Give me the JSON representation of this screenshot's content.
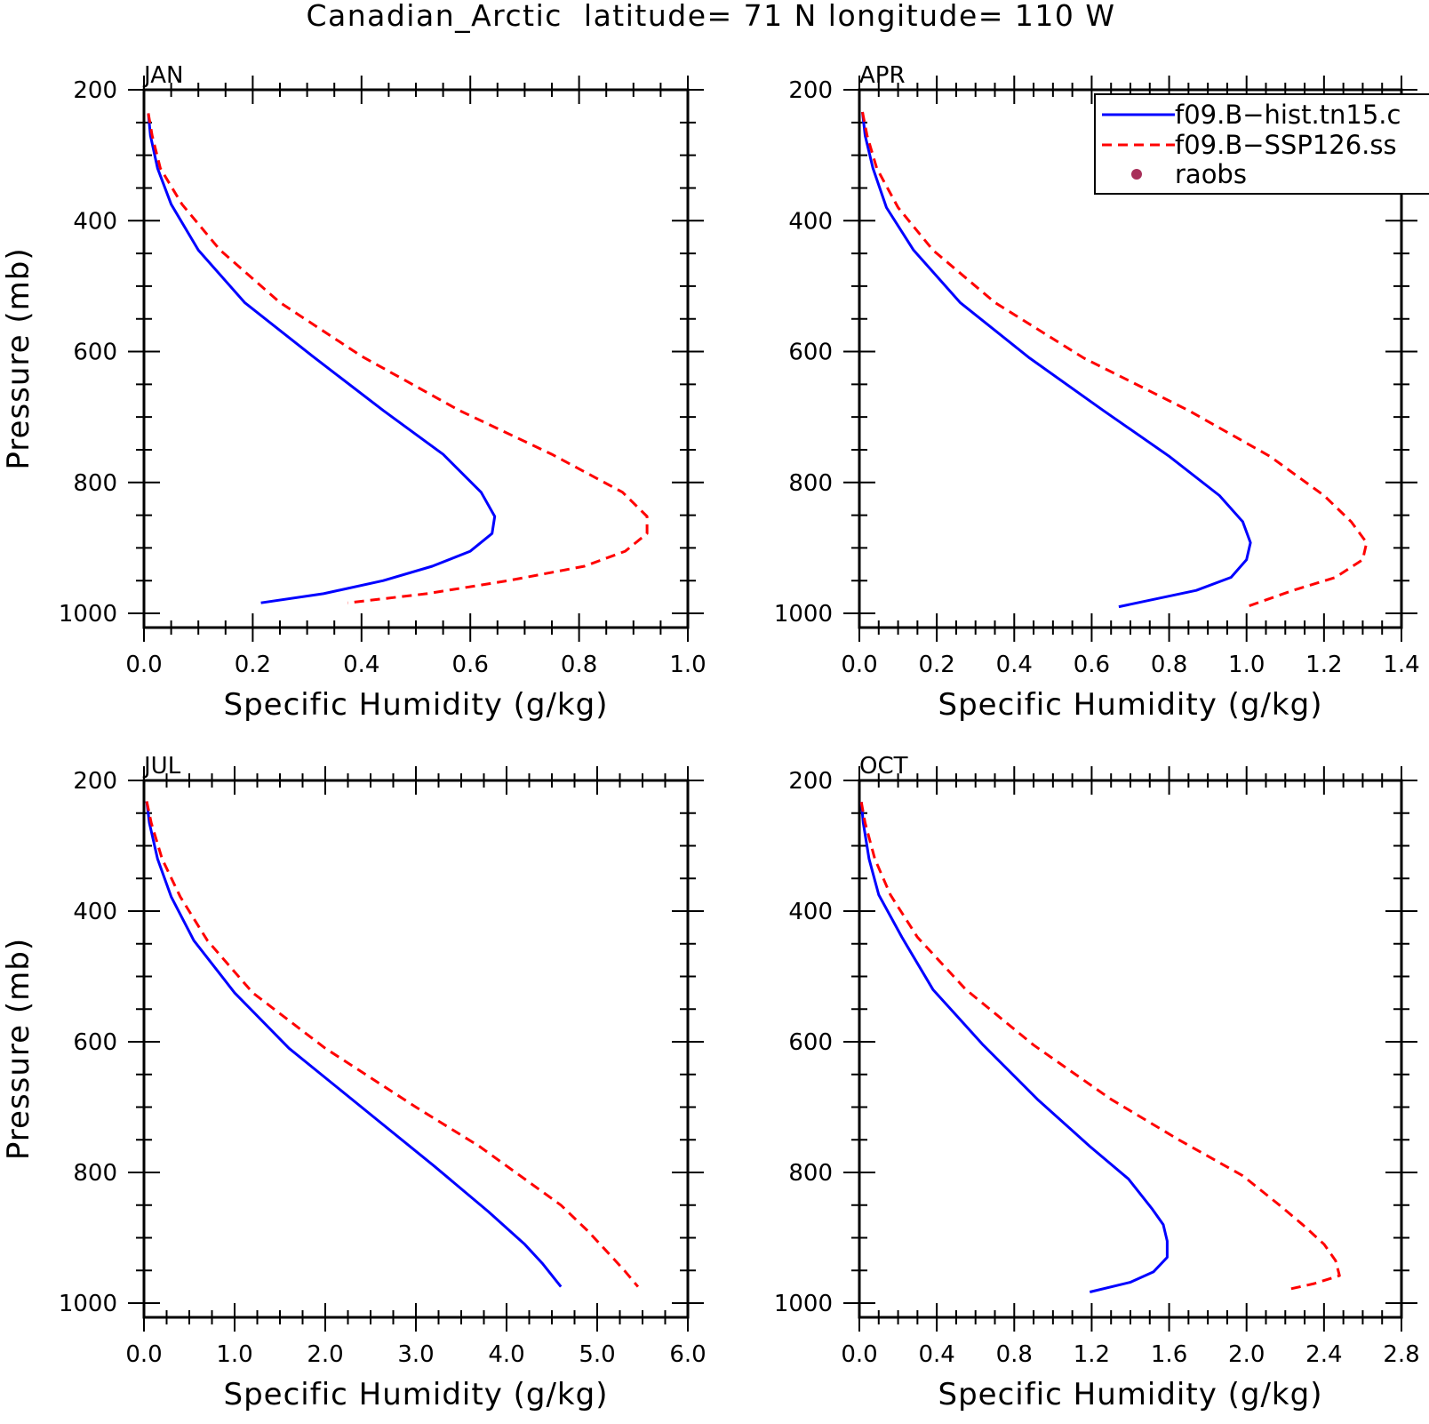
{
  "title": "Canadian_Arctic  latitude= 71 N longitude= 110 W",
  "legend": {
    "entries": [
      {
        "label": "f09.B−hist.tn15.c",
        "color": "#0000ff",
        "style": "solid"
      },
      {
        "label": "f09.B−SSP126.ss",
        "color": "#ff0000",
        "style": "dashed"
      },
      {
        "label": "raobs",
        "color": "#a8305a",
        "style": "marker"
      }
    ]
  },
  "chart_data": [
    {
      "type": "line",
      "panel": "JAN",
      "xlabel": "Specific Humidity (g/kg)",
      "ylabel": "Pressure (mb)",
      "xlim": [
        0,
        1.0
      ],
      "ylim": [
        1000,
        200
      ],
      "xticks": [
        0,
        0.2,
        0.4,
        0.6,
        0.8,
        1.0
      ],
      "xticklabels": [
        "0.0",
        "0.2",
        "0.4",
        "0.6",
        "0.8",
        "1.0"
      ],
      "yticks": [
        200,
        400,
        600,
        800,
        1000
      ],
      "yticklabels": [
        "200",
        "400",
        "600",
        "800",
        "1000"
      ],
      "series": [
        {
          "name": "f09.B−hist.tn15.c",
          "y": [
            236,
            270,
            320,
            375,
            445,
            525,
            607,
            690,
            757,
            815,
            852,
            878,
            905,
            928,
            950,
            970,
            984
          ],
          "x": [
            0.008,
            0.012,
            0.025,
            0.05,
            0.1,
            0.185,
            0.31,
            0.44,
            0.55,
            0.62,
            0.645,
            0.64,
            0.6,
            0.53,
            0.44,
            0.33,
            0.215
          ]
        },
        {
          "name": "f09.B−SSP126.ss",
          "y": [
            236,
            270,
            320,
            375,
            445,
            525,
            607,
            690,
            757,
            815,
            852,
            878,
            905,
            928,
            950,
            970,
            984
          ],
          "x": [
            0.008,
            0.015,
            0.03,
            0.07,
            0.14,
            0.25,
            0.4,
            0.58,
            0.75,
            0.88,
            0.925,
            0.925,
            0.885,
            0.81,
            0.67,
            0.52,
            0.375
          ]
        }
      ]
    },
    {
      "type": "line",
      "panel": "APR",
      "xlabel": "Specific Humidity (g/kg)",
      "ylabel": "",
      "xlim": [
        0,
        1.4
      ],
      "ylim": [
        1000,
        200
      ],
      "xticks": [
        0,
        0.2,
        0.4,
        0.6,
        0.8,
        1.0,
        1.2,
        1.4
      ],
      "xticklabels": [
        "0.0",
        "0.2",
        "0.4",
        "0.6",
        "0.8",
        "1.0",
        "1.2",
        "1.4"
      ],
      "yticks": [
        200,
        400,
        600,
        800,
        1000
      ],
      "yticklabels": [
        "200",
        "400",
        "600",
        "800",
        "1000"
      ],
      "series": [
        {
          "name": "f09.B−hist.tn15.c",
          "y": [
            234,
            270,
            320,
            380,
            445,
            525,
            610,
            690,
            760,
            820,
            860,
            892,
            918,
            945,
            965,
            990
          ],
          "x": [
            0.008,
            0.015,
            0.035,
            0.07,
            0.14,
            0.26,
            0.44,
            0.63,
            0.8,
            0.93,
            0.99,
            1.01,
            1.0,
            0.96,
            0.87,
            0.67
          ]
        },
        {
          "name": "f09.B−SSP126.ss",
          "y": [
            234,
            270,
            320,
            380,
            445,
            525,
            610,
            690,
            760,
            820,
            860,
            892,
            918,
            945,
            965,
            990
          ],
          "x": [
            0.008,
            0.02,
            0.045,
            0.1,
            0.19,
            0.35,
            0.58,
            0.85,
            1.06,
            1.2,
            1.27,
            1.31,
            1.3,
            1.23,
            1.12,
            1.0
          ]
        }
      ]
    },
    {
      "type": "line",
      "panel": "JUL",
      "xlabel": "Specific Humidity (g/kg)",
      "ylabel": "Pressure (mb)",
      "xlim": [
        0,
        6.0
      ],
      "ylim": [
        1000,
        200
      ],
      "xticks": [
        0,
        1,
        2,
        3,
        4,
        5,
        6
      ],
      "xticklabels": [
        "0.0",
        "1.0",
        "2.0",
        "3.0",
        "4.0",
        "5.0",
        "6.0"
      ],
      "yticks": [
        200,
        400,
        600,
        800,
        1000
      ],
      "yticklabels": [
        "200",
        "400",
        "600",
        "800",
        "1000"
      ],
      "series": [
        {
          "name": "f09.B−hist.tn15.c",
          "y": [
            232,
            265,
            320,
            378,
            445,
            525,
            610,
            700,
            790,
            860,
            910,
            940,
            975
          ],
          "x": [
            0.03,
            0.06,
            0.15,
            0.3,
            0.55,
            1.0,
            1.6,
            2.4,
            3.2,
            3.8,
            4.2,
            4.4,
            4.6
          ]
        },
        {
          "name": "f09.B−SSP126.ss",
          "y": [
            232,
            265,
            320,
            378,
            445,
            525,
            610,
            700,
            760,
            850,
            890,
            920,
            950,
            975
          ],
          "x": [
            0.03,
            0.08,
            0.2,
            0.4,
            0.7,
            1.2,
            2.0,
            3.0,
            3.7,
            4.6,
            4.9,
            5.1,
            5.3,
            5.45
          ]
        }
      ]
    },
    {
      "type": "line",
      "panel": "OCT",
      "xlabel": "Specific Humidity (g/kg)",
      "ylabel": "",
      "xlim": [
        0,
        2.8
      ],
      "ylim": [
        1000,
        200
      ],
      "xticks": [
        0,
        0.4,
        0.8,
        1.2,
        1.6,
        2.0,
        2.4,
        2.8
      ],
      "xticklabels": [
        "0.0",
        "0.4",
        "0.8",
        "1.2",
        "1.6",
        "2.0",
        "2.4",
        "2.8"
      ],
      "yticks": [
        200,
        400,
        600,
        800,
        1000
      ],
      "yticklabels": [
        "200",
        "400",
        "600",
        "800",
        "1000"
      ],
      "series": [
        {
          "name": "f09.B−hist.tn15.c",
          "y": [
            233,
            265,
            320,
            375,
            440,
            520,
            605,
            688,
            760,
            810,
            855,
            880,
            905,
            930,
            952,
            968,
            983
          ],
          "x": [
            0.01,
            0.02,
            0.05,
            0.1,
            0.22,
            0.38,
            0.64,
            0.92,
            1.19,
            1.39,
            1.51,
            1.57,
            1.59,
            1.59,
            1.52,
            1.4,
            1.19
          ]
        },
        {
          "name": "f09.B−SSP126.ss",
          "y": [
            233,
            265,
            320,
            375,
            440,
            520,
            605,
            688,
            750,
            805,
            850,
            880,
            910,
            935,
            958,
            970,
            980
          ],
          "x": [
            0.01,
            0.03,
            0.08,
            0.16,
            0.3,
            0.55,
            0.9,
            1.3,
            1.65,
            1.98,
            2.17,
            2.29,
            2.4,
            2.46,
            2.48,
            2.35,
            2.2
          ]
        }
      ]
    }
  ]
}
